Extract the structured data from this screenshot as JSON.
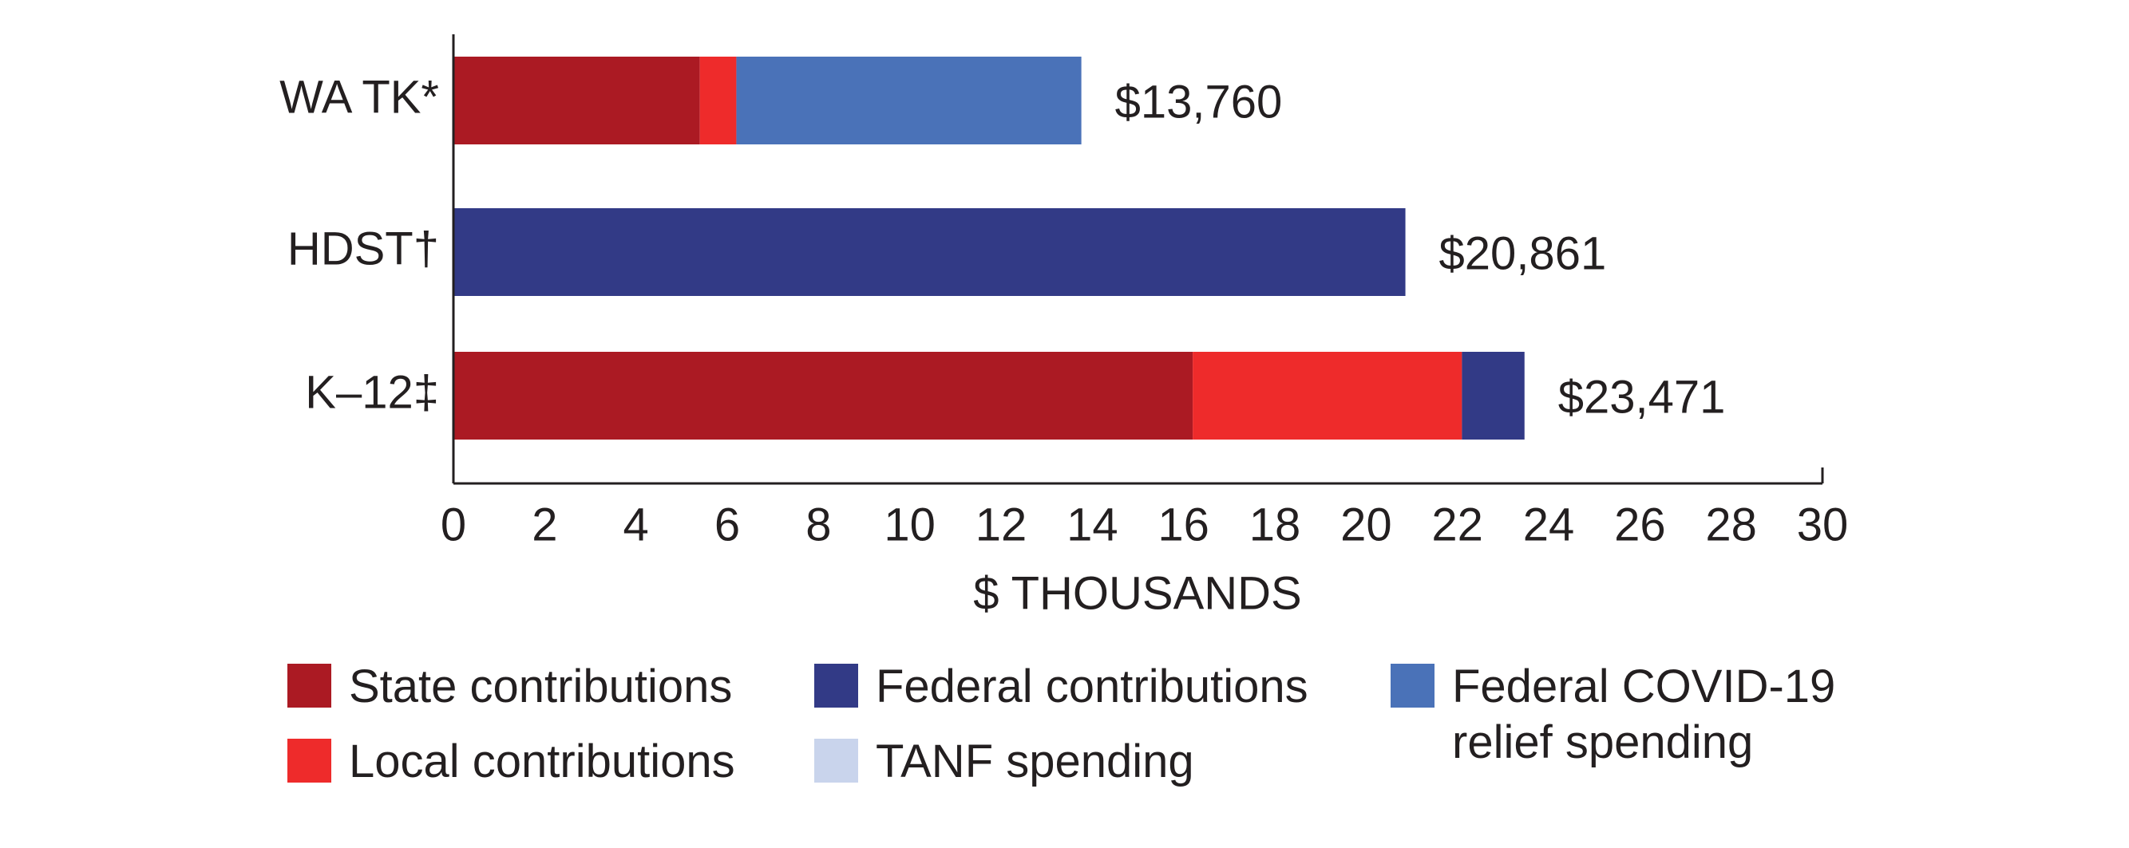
{
  "chart_data": {
    "type": "stacked-bar-horizontal",
    "categories": [
      "WA TK*",
      "HDST†",
      "K–12‡"
    ],
    "series": [
      {
        "name": "State contributions",
        "color": "#ab1a23",
        "values": [
          5.4,
          null,
          16.2
        ]
      },
      {
        "name": "Local contributions",
        "color": "#ee2b2b",
        "values": [
          0.8,
          null,
          5.9
        ]
      },
      {
        "name": "Federal contributions",
        "color": "#323a86",
        "values": [
          null,
          20.861,
          1.371
        ]
      },
      {
        "name": "TANF spending",
        "color": "#c9d4ec",
        "values": [
          null,
          null,
          null
        ]
      },
      {
        "name": "Federal COVID-19 relief spending",
        "color": "#4a72b8",
        "values": [
          7.56,
          null,
          null
        ]
      }
    ],
    "totals": [
      13.76,
      20.861,
      23.471
    ],
    "value_labels": [
      "$13,760",
      "$20,861",
      "$23,471"
    ],
    "xlabel": "$ THOUSANDS",
    "xlim": [
      0,
      30
    ],
    "xticks": [
      0,
      2,
      4,
      6,
      8,
      10,
      12,
      14,
      16,
      18,
      20,
      22,
      24,
      26,
      28,
      30
    ]
  }
}
